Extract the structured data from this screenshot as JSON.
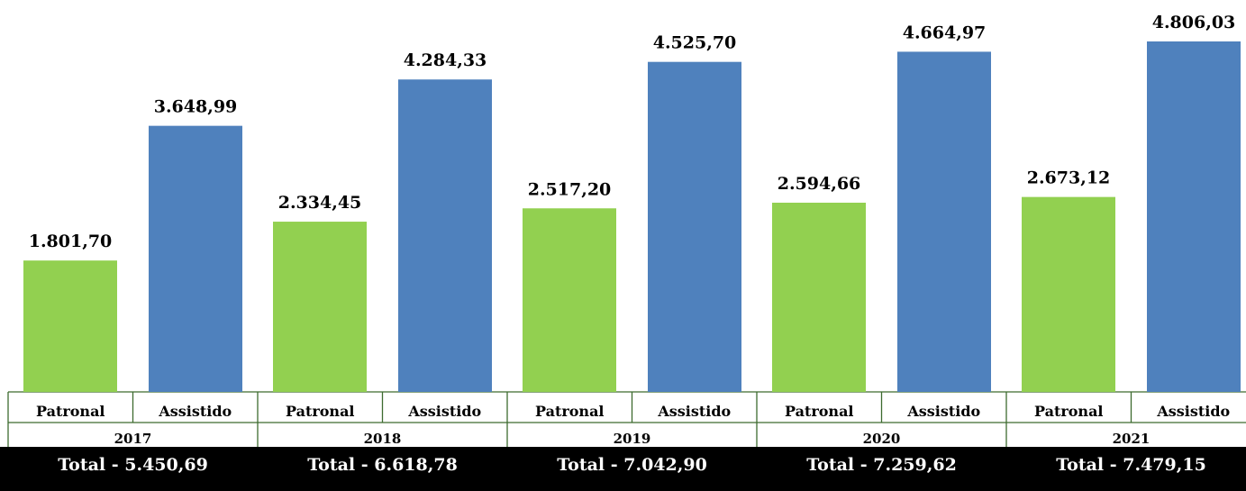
{
  "chart_data": {
    "type": "bar",
    "y_min": 0,
    "y_max": 4806.03,
    "groups": [
      {
        "year": "2017",
        "total_text": "Total - 5.450,69",
        "bars": [
          {
            "category": "Patronal",
            "value": 1801.7,
            "label": "1.801,70",
            "color": "#92d050"
          },
          {
            "category": "Assistido",
            "value": 3648.99,
            "label": "3.648,99",
            "color": "#4f81bd"
          }
        ]
      },
      {
        "year": "2018",
        "total_text": "Total - 6.618,78",
        "bars": [
          {
            "category": "Patronal",
            "value": 2334.45,
            "label": "2.334,45",
            "color": "#92d050"
          },
          {
            "category": "Assistido",
            "value": 4284.33,
            "label": "4.284,33",
            "color": "#4f81bd"
          }
        ]
      },
      {
        "year": "2019",
        "total_text": "Total - 7.042,90",
        "bars": [
          {
            "category": "Patronal",
            "value": 2517.2,
            "label": "2.517,20",
            "color": "#92d050"
          },
          {
            "category": "Assistido",
            "value": 4525.7,
            "label": "4.525,70",
            "color": "#4f81bd"
          }
        ]
      },
      {
        "year": "2020",
        "total_text": "Total - 7.259,62",
        "bars": [
          {
            "category": "Patronal",
            "value": 2594.66,
            "label": "2.594,66",
            "color": "#92d050"
          },
          {
            "category": "Assistido",
            "value": 4664.97,
            "label": "4.664,97",
            "color": "#4f81bd"
          }
        ]
      },
      {
        "year": "2021",
        "total_text": "Total - 7.479,15",
        "bars": [
          {
            "category": "Patronal",
            "value": 2673.12,
            "label": "2.673,12",
            "color": "#92d050"
          },
          {
            "category": "Assistido",
            "value": 4806.03,
            "label": "4.806,03",
            "color": "#4f81bd"
          }
        ]
      }
    ],
    "grid": false,
    "legend": "none"
  }
}
